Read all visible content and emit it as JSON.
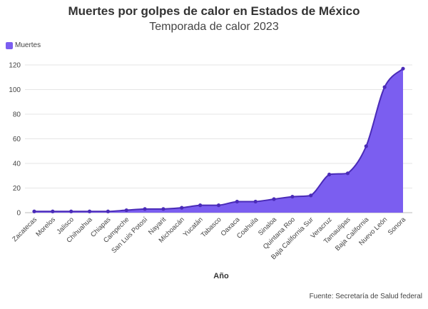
{
  "chart_data": {
    "type": "area",
    "title": "Muertes por golpes de calor en Estados de México",
    "subtitle": "Temporada de calor 2023",
    "xlabel": "Año",
    "ylabel": "",
    "ylim": [
      0,
      120
    ],
    "yticks": [
      0,
      20,
      40,
      60,
      80,
      100,
      120
    ],
    "grid": true,
    "legend_position": "top-left",
    "categories": [
      "Zacatecas",
      "Morelos",
      "Jalisco",
      "Chihuahua",
      "Chiapas",
      "Campeche",
      "San Luis Potosí",
      "Nayarit",
      "Michoacán",
      "Yucatán",
      "Tabasco",
      "Oaxaca",
      "Coahuila",
      "Sinaloa",
      "Quintana Roo",
      "Baja California Sur",
      "Veracruz",
      "Tamaulipas",
      "Baja California",
      "Nuevo León",
      "Sonora"
    ],
    "series": [
      {
        "name": "Muertes",
        "values": [
          1,
          1,
          1,
          1,
          1,
          2,
          3,
          3,
          4,
          6,
          6,
          9,
          9,
          11,
          13,
          14,
          31,
          32,
          54,
          102,
          117
        ]
      }
    ]
  },
  "colors": {
    "fill": "#7b5ef0",
    "line": "#4a2bb8",
    "grid": "#e6e6e6"
  },
  "source": "Fuente: Secretaría de Salud federal"
}
